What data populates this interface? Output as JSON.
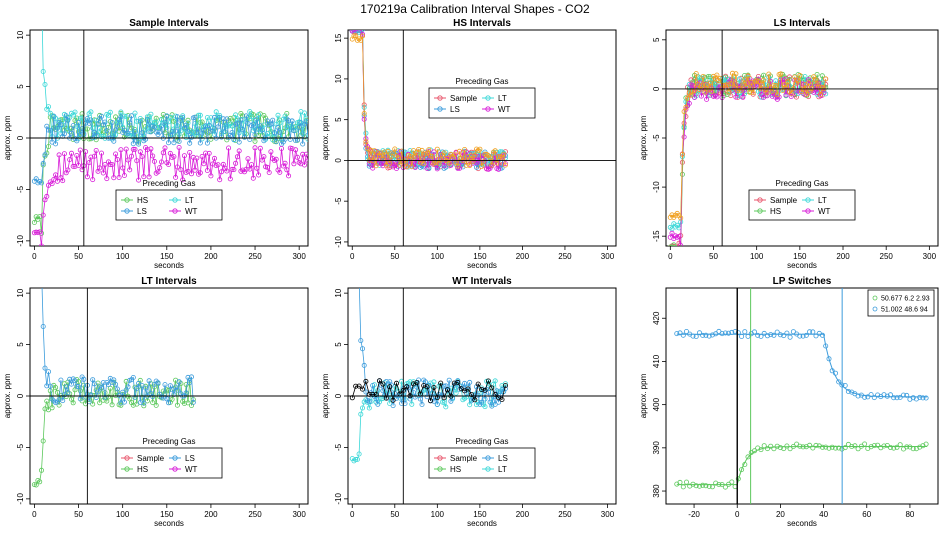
{
  "figure_title": "170219a   Calibration Interval Shapes - CO2",
  "colors": {
    "Sample": "#e8556b",
    "HS": "#5cc85c",
    "LS": "#3c9cdc",
    "LT": "#3cd8d8",
    "WT": "#d81cd8",
    "black": "#000000",
    "orange": "#f0a020"
  },
  "chart_data": [
    {
      "type": "scatter",
      "title": "Sample Intervals",
      "xlabel": "seconds",
      "ylabel": "approx. ppm",
      "xlim": [
        -5,
        310
      ],
      "ylim": [
        -10.5,
        10.5
      ],
      "xticks": [
        0,
        50,
        100,
        150,
        200,
        250,
        300
      ],
      "yticks": [
        -10,
        -5,
        0,
        5,
        10
      ],
      "hline": 0,
      "vline": 56,
      "legend": {
        "title": "Preceding Gas",
        "entries": [
          "HS",
          "LT",
          "LS",
          "WT"
        ],
        "position": "bottom-center"
      },
      "series": [
        {
          "name": "HS",
          "color_key": "HS",
          "start": -8,
          "settle": 1,
          "noise": 1.4,
          "tau": 3,
          "t0": 8,
          "x_end": 310
        },
        {
          "name": "LT",
          "color_key": "LT",
          "start": 14,
          "settle": 1.2,
          "noise": 1.4,
          "tau": 3,
          "t0": 8,
          "x_end": 310
        },
        {
          "name": "LS",
          "color_key": "LS",
          "start": -4,
          "settle": 0.8,
          "noise": 1.4,
          "tau": 3,
          "t0": 8,
          "x_end": 310
        },
        {
          "name": "WT",
          "color_key": "WT",
          "start": -9,
          "settle": -2.5,
          "noise": 1.6,
          "tau": 6,
          "t0": 8,
          "x_end": 310
        }
      ]
    },
    {
      "type": "scatter",
      "title": "HS Intervals",
      "xlabel": "seconds",
      "ylabel": "approx. ppm",
      "xlim": [
        -5,
        310
      ],
      "ylim": [
        -10.5,
        16
      ],
      "xticks": [
        0,
        50,
        100,
        150,
        200,
        250,
        300
      ],
      "yticks": [
        -10,
        -5,
        0,
        5,
        10,
        15
      ],
      "hline": 0,
      "vline": 60,
      "legend": {
        "title": "Preceding Gas",
        "entries": [
          "Sample",
          "LT",
          "LS",
          "WT"
        ],
        "position": "top-center"
      },
      "series": [
        {
          "name": "Sample",
          "color_key": "Sample",
          "start": 16,
          "settle": 0,
          "noise": 1.1,
          "tau": 2,
          "t0": 12,
          "x_end": 180
        },
        {
          "name": "LS",
          "color_key": "LS",
          "start": 16,
          "settle": 0,
          "noise": 1.1,
          "tau": 2,
          "t0": 12,
          "x_end": 180
        },
        {
          "name": "LT",
          "color_key": "LT",
          "start": 16,
          "settle": 0.2,
          "noise": 1.1,
          "tau": 2,
          "t0": 12,
          "x_end": 180
        },
        {
          "name": "WT",
          "color_key": "WT",
          "start": 16,
          "settle": 0,
          "noise": 1.1,
          "tau": 2,
          "t0": 12,
          "x_end": 180
        },
        {
          "name": "other",
          "color_key": "orange",
          "start": 15,
          "settle": 0.3,
          "noise": 1.1,
          "tau": 2,
          "t0": 12,
          "x_end": 180
        }
      ]
    },
    {
      "type": "scatter",
      "title": "LS Intervals",
      "xlabel": "seconds",
      "ylabel": "approx. ppm",
      "xlim": [
        -5,
        310
      ],
      "ylim": [
        -16,
        6
      ],
      "xticks": [
        0,
        50,
        100,
        150,
        200,
        250,
        300
      ],
      "yticks": [
        -15,
        -10,
        -5,
        0,
        5
      ],
      "hline": 0,
      "vline": 60,
      "legend": {
        "title": "Preceding Gas",
        "entries": [
          "Sample",
          "LT",
          "HS",
          "WT"
        ],
        "position": "bottom-center"
      },
      "series": [
        {
          "name": "Sample",
          "color_key": "Sample",
          "start": -16,
          "settle": 0.2,
          "noise": 1.1,
          "tau": 3,
          "t0": 12,
          "x_end": 180
        },
        {
          "name": "HS",
          "color_key": "HS",
          "start": -16,
          "settle": 0.4,
          "noise": 1.1,
          "tau": 3,
          "t0": 12,
          "x_end": 180
        },
        {
          "name": "LT",
          "color_key": "LT",
          "start": -14,
          "settle": 0.2,
          "noise": 1.1,
          "tau": 3,
          "t0": 12,
          "x_end": 180
        },
        {
          "name": "WT",
          "color_key": "WT",
          "start": -15,
          "settle": 0,
          "noise": 1.1,
          "tau": 3,
          "t0": 12,
          "x_end": 180
        },
        {
          "name": "other",
          "color_key": "orange",
          "start": -13,
          "settle": 0.5,
          "noise": 1.1,
          "tau": 3,
          "t0": 12,
          "x_end": 180
        }
      ]
    },
    {
      "type": "scatter",
      "title": "LT Intervals",
      "xlabel": "seconds",
      "ylabel": "approx. ppm",
      "xlim": [
        -5,
        310
      ],
      "ylim": [
        -10.5,
        10.5
      ],
      "xticks": [
        0,
        50,
        100,
        150,
        200,
        250,
        300
      ],
      "yticks": [
        -10,
        -5,
        0,
        5,
        10
      ],
      "hline": 0,
      "vline": 60,
      "legend": {
        "title": "Preceding Gas",
        "entries": [
          "Sample",
          "LS",
          "HS",
          "WT"
        ],
        "position": "bottom-center"
      },
      "series": [
        {
          "name": "HS",
          "color_key": "HS",
          "start": -8.5,
          "settle": 0.3,
          "noise": 1.3,
          "tau": 3,
          "t0": 8,
          "x_end": 180
        },
        {
          "name": "LS",
          "color_key": "LS",
          "start": 12,
          "settle": 0.6,
          "noise": 1.3,
          "tau": 3,
          "t0": 8,
          "x_end": 180
        }
      ]
    },
    {
      "type": "scatter",
      "title": "WT Intervals",
      "xlabel": "seconds",
      "ylabel": "approx. ppm",
      "xlim": [
        -5,
        310
      ],
      "ylim": [
        -10.5,
        10.5
      ],
      "xticks": [
        0,
        50,
        100,
        150,
        200,
        250,
        300
      ],
      "yticks": [
        -10,
        -5,
        0,
        5,
        10
      ],
      "hline": 0,
      "vline": 60,
      "legend": {
        "title": "Preceding Gas",
        "entries": [
          "Sample",
          "LS",
          "HS",
          "LT"
        ],
        "position": "bottom-center"
      },
      "series": [
        {
          "name": "LT",
          "color_key": "LT",
          "start": -6,
          "settle": 0.2,
          "noise": 1.3,
          "tau": 3,
          "t0": 8,
          "x_end": 180
        },
        {
          "name": "LS",
          "color_key": "LS",
          "start": 12,
          "settle": 0.3,
          "noise": 1.3,
          "tau": 3,
          "t0": 8,
          "x_end": 180
        },
        {
          "name": "black",
          "color_key": "black",
          "start": 0,
          "settle": 0.5,
          "noise": 1.0,
          "tau": 1,
          "t0": 0,
          "x_end": 180,
          "sparse": true
        }
      ]
    },
    {
      "type": "scatter",
      "title": "LP Switches",
      "xlabel": "seconds",
      "ylabel": "approx. ppm",
      "xlim": [
        -33,
        93
      ],
      "ylim": [
        377,
        427
      ],
      "xticks": [
        -20,
        0,
        20,
        40,
        60,
        80
      ],
      "yticks": [
        380,
        390,
        400,
        410,
        420
      ],
      "vlines": [
        {
          "x": 0,
          "color_key": "black"
        },
        {
          "x": 6.2,
          "color_key": "HS"
        },
        {
          "x": 48.6,
          "color_key": "LS"
        }
      ],
      "legend": {
        "title": "",
        "entries": [
          "50.677 6.2 2.93",
          "51.002 48.6 94"
        ],
        "entry_colors": [
          "HS",
          "LS"
        ],
        "position": "top-right"
      },
      "series": [
        {
          "name": "50.677 6.2 2.93",
          "color_key": "HS",
          "from": 381.5,
          "to": 390.3,
          "switch": 0,
          "tau": 4,
          "noise": 0.6
        },
        {
          "name": "51.002 48.6 94",
          "color_key": "LS",
          "from": 416.3,
          "to": 401.8,
          "switch": 40,
          "tau": 5,
          "noise": 0.7
        }
      ]
    }
  ]
}
